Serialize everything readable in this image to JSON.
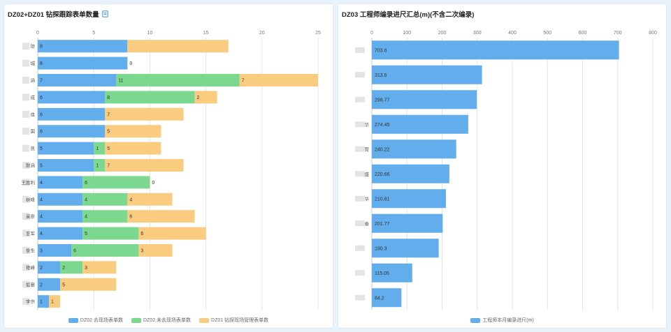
{
  "panels": {
    "left_title": "DZ02+DZ01 钻探跟踪表单数量",
    "right_title": "DZ03 工程师编录进尺汇总(m)(不含二次编录)"
  },
  "icons": {
    "left_title_icon": "document-icon"
  },
  "colors": {
    "blue": "#62aeec",
    "green": "#7bd88e",
    "orange": "#f9cc80"
  },
  "chart_data": [
    {
      "type": "bar",
      "orientation": "horizontal",
      "stacked": true,
      "title": "DZ02+DZ01 钻探跟踪表单数量",
      "categories": [
        "…琼",
        "…城",
        "…涵",
        "…成",
        "…佳",
        "…国",
        "…凯",
        "…默涵",
        "王胜利",
        "…树峰",
        "…吴彦",
        "…亚军",
        "…俊生",
        "…艳峰",
        "…如豪",
        "…李京"
      ],
      "category_display": [
        "琼",
        "城",
        "涵",
        "成",
        "佳",
        "国",
        "凯",
        "默涵",
        "王胜利",
        "树峰",
        "吴彦",
        "亚军",
        "俊生",
        "艳峰",
        "如豪",
        "李京"
      ],
      "xlim": [
        0,
        25
      ],
      "xticks": [
        0,
        5,
        10,
        15,
        20,
        25
      ],
      "grid": true,
      "legend_position": "bottom",
      "series": [
        {
          "name": "DZ02 去现场表单数",
          "color": "#62aeec",
          "values": [
            8,
            8,
            7,
            6,
            6,
            6,
            5,
            5,
            4,
            4,
            4,
            4,
            3,
            2,
            2,
            1
          ]
        },
        {
          "name": "DZ02 未去现场表单数",
          "color": "#7bd88e",
          "values": [
            0,
            0,
            11,
            8,
            0,
            0,
            1,
            1,
            6,
            4,
            4,
            5,
            6,
            2,
            0,
            0
          ]
        },
        {
          "name": "DZ01 钻探现场管理表单数",
          "color": "#f9cc80",
          "values": [
            9,
            0,
            7,
            2,
            7,
            5,
            5,
            7,
            0,
            4,
            6,
            6,
            3,
            3,
            5,
            1
          ]
        }
      ],
      "labels": [
        [
          "8",
          "9"
        ],
        [
          "8",
          null,
          "0"
        ],
        [
          "7",
          "11",
          "7"
        ],
        [
          "6",
          "8",
          "2"
        ],
        [
          "6",
          null,
          "7"
        ],
        [
          "6",
          null,
          "5"
        ],
        [
          "5",
          "1",
          "5"
        ],
        [
          "5",
          "1",
          "7"
        ],
        [
          "4",
          "6",
          "0"
        ],
        [
          "4",
          "4",
          "4"
        ],
        [
          "4",
          "4",
          "6"
        ],
        [
          "4",
          "5",
          "6"
        ],
        [
          "3",
          "6",
          "3"
        ],
        [
          "2",
          "2",
          "3"
        ],
        [
          "2",
          null,
          "5"
        ],
        [
          "1",
          null,
          "1"
        ]
      ]
    },
    {
      "type": "bar",
      "orientation": "horizontal",
      "title": "DZ03 工程师编录进尺汇总(m)(不含二次编录)",
      "categories": [
        "…",
        "…",
        "…",
        "…华",
        "…营",
        "…盛",
        "…华",
        "…春",
        "…",
        "…",
        "…"
      ],
      "category_display": [
        "",
        "",
        "",
        "华",
        "营",
        "盛",
        "华",
        "春",
        "",
        "",
        ""
      ],
      "xlim": [
        0,
        800
      ],
      "xticks": [
        0,
        100,
        200,
        300,
        400,
        500,
        600,
        700,
        800
      ],
      "grid": true,
      "legend_position": "bottom",
      "series": [
        {
          "name": "工程师本月编录进尺(m)",
          "color": "#62aeec",
          "values": [
            703.6,
            313.6,
            298.77,
            274.45,
            240.22,
            220.66,
            210.81,
            201.77,
            190.3,
            115.05,
            84.2
          ]
        }
      ]
    }
  ]
}
